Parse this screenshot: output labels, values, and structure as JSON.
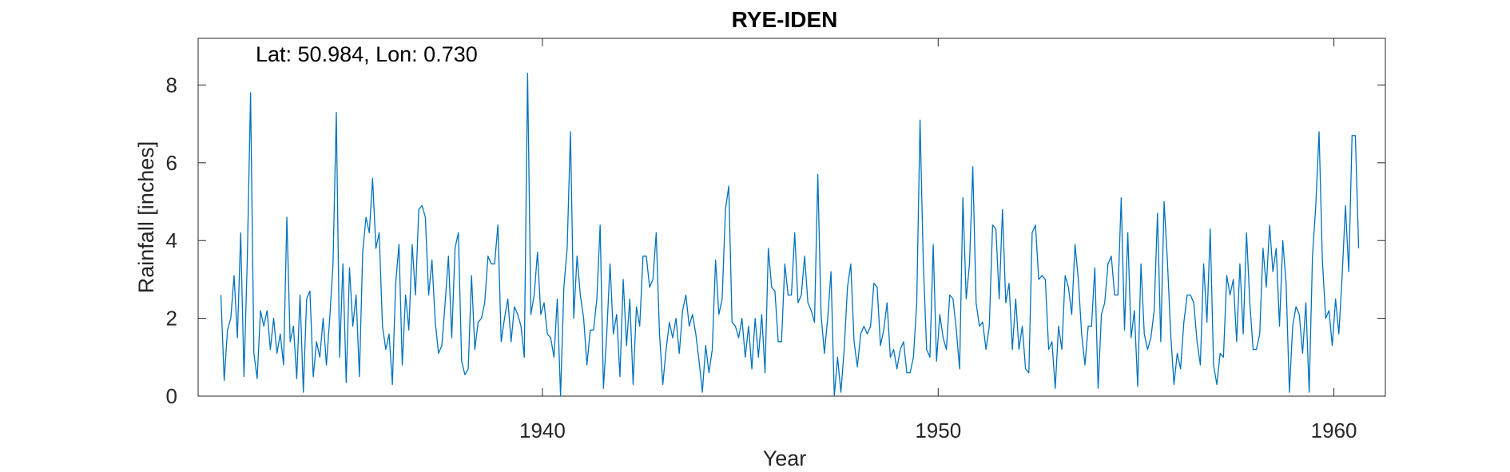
{
  "chart_data": {
    "type": "line",
    "title": "RYE-IDEN",
    "annotation": "Lat: 50.984, Lon: 0.730",
    "xlabel": "Year",
    "ylabel": "Rainfall [inches]",
    "xlim": [
      1931.3,
      1961.3
    ],
    "ylim": [
      0,
      9.2
    ],
    "x_ticks": [
      1940,
      1950,
      1960
    ],
    "x_tick_labels": [
      "1940",
      "1950",
      "1960"
    ],
    "y_ticks": [
      0,
      2,
      4,
      6,
      8
    ],
    "y_tick_labels": [
      "0",
      "2",
      "4",
      "6",
      "8"
    ],
    "grid": false,
    "box": true,
    "line_color": "#0072BD",
    "x_start": 1931.875,
    "x_step": 0.083333,
    "series": [
      {
        "values": [
          2.6,
          0.4,
          1.7,
          2.0,
          3.1,
          1.5,
          4.2,
          0.5,
          3.5,
          7.8,
          1.1,
          0.45,
          2.2,
          1.8,
          2.2,
          1.2,
          2.0,
          1.1,
          1.6,
          0.8,
          4.6,
          1.4,
          1.8,
          0.45,
          2.6,
          0.1,
          2.5,
          2.7,
          0.5,
          1.4,
          1.0,
          2.0,
          0.8,
          2.0,
          3.4,
          7.3,
          1.0,
          3.4,
          0.35,
          3.3,
          1.8,
          2.6,
          0.5,
          3.7,
          4.6,
          4.2,
          5.6,
          3.8,
          4.2,
          1.8,
          1.2,
          1.6,
          0.3,
          2.9,
          3.9,
          0.8,
          2.6,
          1.7,
          3.9,
          2.6,
          4.8,
          4.9,
          4.6,
          2.6,
          3.5,
          1.9,
          1.1,
          1.3,
          2.4,
          3.6,
          1.5,
          3.8,
          4.2,
          0.9,
          0.55,
          0.7,
          3.1,
          1.2,
          1.9,
          2.0,
          2.4,
          3.6,
          3.4,
          3.4,
          4.4,
          1.4,
          2.0,
          2.5,
          1.4,
          2.3,
          2.1,
          1.8,
          1.0,
          8.3,
          2.1,
          2.6,
          3.7,
          2.1,
          2.4,
          1.6,
          1.5,
          1.0,
          2.5,
          0.0,
          2.8,
          3.8,
          6.8,
          2.0,
          3.6,
          2.6,
          2.0,
          0.8,
          1.7,
          1.7,
          2.5,
          4.4,
          0.2,
          1.6,
          3.4,
          1.6,
          2.1,
          0.5,
          3.0,
          1.3,
          2.5,
          0.3,
          2.3,
          1.8,
          3.6,
          3.6,
          2.8,
          3.0,
          4.2,
          1.6,
          0.3,
          1.2,
          1.9,
          1.5,
          2.0,
          1.1,
          2.2,
          2.6,
          1.8,
          2.1,
          1.6,
          0.9,
          0.1,
          1.3,
          0.6,
          1.2,
          3.5,
          2.1,
          2.5,
          4.8,
          5.4,
          1.9,
          1.8,
          1.5,
          2.0,
          1.0,
          1.8,
          0.7,
          2.0,
          1.0,
          2.1,
          0.6,
          3.8,
          2.8,
          2.7,
          1.4,
          1.4,
          3.4,
          2.6,
          2.6,
          4.2,
          2.4,
          2.6,
          3.6,
          2.4,
          2.2,
          1.9,
          5.7,
          2.1,
          1.1,
          2.0,
          3.2,
          0.0,
          1.0,
          0.1,
          1.2,
          2.8,
          3.4,
          1.4,
          0.75,
          1.6,
          1.8,
          1.6,
          1.8,
          2.9,
          2.8,
          1.3,
          1.7,
          2.4,
          1.0,
          1.2,
          0.7,
          1.2,
          1.4,
          0.6,
          0.6,
          1.0,
          2.4,
          7.1,
          3.4,
          1.2,
          1.0,
          3.9,
          0.9,
          2.1,
          1.5,
          1.2,
          2.6,
          2.5,
          1.7,
          0.7,
          5.1,
          2.5,
          3.4,
          5.9,
          2.4,
          1.8,
          1.9,
          1.2,
          1.8,
          4.4,
          4.3,
          2.5,
          4.8,
          2.4,
          2.9,
          1.2,
          2.5,
          1.2,
          1.8,
          0.7,
          0.6,
          4.2,
          4.4,
          3.0,
          3.1,
          3.0,
          1.2,
          1.4,
          0.2,
          1.8,
          1.2,
          3.1,
          2.8,
          2.1,
          3.9,
          3.0,
          1.6,
          0.8,
          1.8,
          1.8,
          3.3,
          0.2,
          2.1,
          2.4,
          3.4,
          3.6,
          2.6,
          2.6,
          5.1,
          1.7,
          4.2,
          1.5,
          2.2,
          0.25,
          3.4,
          1.6,
          1.2,
          1.5,
          2.2,
          4.7,
          1.4,
          5.0,
          3.5,
          1.6,
          0.3,
          1.1,
          0.7,
          1.9,
          2.6,
          2.6,
          2.4,
          1.4,
          0.8,
          3.4,
          1.9,
          4.3,
          0.8,
          0.3,
          1.1,
          1.0,
          3.1,
          2.6,
          3.0,
          1.4,
          3.4,
          1.6,
          4.2,
          2.4,
          1.2,
          1.2,
          1.6,
          3.8,
          2.8,
          4.4,
          3.2,
          3.8,
          1.8,
          4.0,
          2.9,
          0.1,
          1.8,
          2.3,
          2.1,
          1.1,
          2.4,
          0.1,
          3.6,
          4.9,
          6.8,
          3.5,
          2.0,
          2.2,
          1.3,
          2.5,
          1.6,
          3.1,
          4.9,
          3.2,
          6.7,
          6.7,
          3.8
        ]
      }
    ]
  }
}
